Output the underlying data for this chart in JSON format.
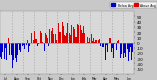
{
  "title": "Milwaukee Weather Outdoor Humidity At Daily High Temperature (Past Year)",
  "background_color": "#c8c8c8",
  "plot_bg_color": "#d8d8d8",
  "bar_width": 0.8,
  "ylim": [
    -60,
    60
  ],
  "ytick_values": [
    50,
    40,
    30,
    20,
    10,
    0,
    -10,
    -20,
    -30,
    -40,
    -50
  ],
  "ytick_labels": [
    "50",
    "40",
    "30",
    "20",
    "10",
    "0",
    "-10",
    "-20",
    "-30",
    "-40",
    "-50"
  ],
  "above_color": "#dd0000",
  "below_color": "#0000cc",
  "num_points": 365,
  "seed": 12345,
  "vertical_grid_count": 12,
  "legend_blue_label": "Below Avg",
  "legend_red_label": "Above Avg"
}
